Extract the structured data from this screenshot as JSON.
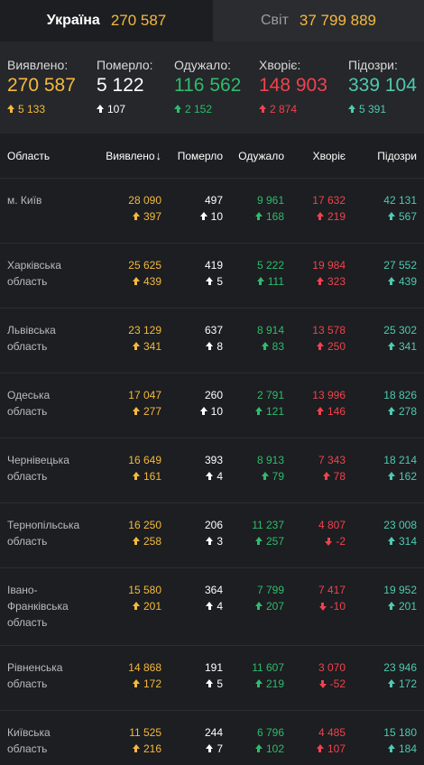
{
  "tabs": {
    "ukraine": {
      "label": "Україна",
      "value": "270 587"
    },
    "world": {
      "label": "Світ",
      "value": "37 799 889"
    }
  },
  "summary": [
    {
      "label": "Виявлено:",
      "value": "270 587",
      "delta": "5 133",
      "dir": "up",
      "color": "c-yellow",
      "dcolor": "c-yellow",
      "width": 99
    },
    {
      "label": "Померло:",
      "value": "5 122",
      "delta": "107",
      "dir": "up",
      "color": "c-white",
      "dcolor": "c-white",
      "width": 86
    },
    {
      "label": "Одужало:",
      "value": "116 562",
      "delta": "2 152",
      "dir": "up",
      "color": "c-green",
      "dcolor": "c-green",
      "width": 94
    },
    {
      "label": "Хворіє:",
      "value": "148 903",
      "delta": "2 874",
      "dir": "up",
      "color": "c-red",
      "dcolor": "c-red",
      "width": 99
    },
    {
      "label": "Підозри:",
      "value": "339 104",
      "delta": "5 391",
      "dir": "up",
      "color": "c-teal",
      "dcolor": "c-teal",
      "width": 84
    }
  ],
  "table": {
    "headers": {
      "region": "Область",
      "detected": "Виявлено",
      "sort_icon": "↓",
      "died": "Померло",
      "recovered": "Одужало",
      "sick": "Хворіє",
      "suspected": "Підозри"
    },
    "rows": [
      {
        "name": "м. Київ",
        "h": 72,
        "cells": [
          [
            "28 090",
            "397",
            "up"
          ],
          [
            "497",
            "10",
            "up"
          ],
          [
            "9 961",
            "168",
            "up"
          ],
          [
            "17 632",
            "219",
            "up"
          ],
          [
            "42 131",
            "567",
            "up"
          ]
        ]
      },
      {
        "name": "Харківська область",
        "h": 72,
        "cells": [
          [
            "25 625",
            "439",
            "up"
          ],
          [
            "419",
            "5",
            "up"
          ],
          [
            "5 222",
            "111",
            "up"
          ],
          [
            "19 984",
            "323",
            "up"
          ],
          [
            "27 552",
            "439",
            "up"
          ]
        ]
      },
      {
        "name": "Львівська область",
        "h": 72,
        "cells": [
          [
            "23 129",
            "341",
            "up"
          ],
          [
            "637",
            "8",
            "up"
          ],
          [
            "8 914",
            "83",
            "up"
          ],
          [
            "13 578",
            "250",
            "up"
          ],
          [
            "25 302",
            "341",
            "up"
          ]
        ]
      },
      {
        "name": "Одеська область",
        "h": 72,
        "cells": [
          [
            "17 047",
            "277",
            "up"
          ],
          [
            "260",
            "10",
            "up"
          ],
          [
            "2 791",
            "121",
            "up"
          ],
          [
            "13 996",
            "146",
            "up"
          ],
          [
            "18 826",
            "278",
            "up"
          ]
        ]
      },
      {
        "name": "Чернівецька область",
        "h": 72,
        "cells": [
          [
            "16 649",
            "161",
            "up"
          ],
          [
            "393",
            "4",
            "up"
          ],
          [
            "8 913",
            "79",
            "up"
          ],
          [
            "7 343",
            "78",
            "up"
          ],
          [
            "18 214",
            "162",
            "up"
          ]
        ]
      },
      {
        "name": "Тернопільська область",
        "h": 72,
        "cells": [
          [
            "16 250",
            "258",
            "up"
          ],
          [
            "206",
            "3",
            "up"
          ],
          [
            "11 237",
            "257",
            "up"
          ],
          [
            "4 807",
            "-2",
            "down"
          ],
          [
            "23 008",
            "314",
            "up"
          ]
        ]
      },
      {
        "name": "Івано-Франківська область",
        "h": 86,
        "cells": [
          [
            "15 580",
            "201",
            "up"
          ],
          [
            "364",
            "4",
            "up"
          ],
          [
            "7 799",
            "207",
            "up"
          ],
          [
            "7 417",
            "-10",
            "down"
          ],
          [
            "19 952",
            "201",
            "up"
          ]
        ]
      },
      {
        "name": "Рівненська область",
        "h": 72,
        "cells": [
          [
            "14 868",
            "172",
            "up"
          ],
          [
            "191",
            "5",
            "up"
          ],
          [
            "11 607",
            "219",
            "up"
          ],
          [
            "3 070",
            "-52",
            "down"
          ],
          [
            "23 946",
            "172",
            "up"
          ]
        ]
      },
      {
        "name": "Київська область",
        "h": 72,
        "cells": [
          [
            "11 525",
            "216",
            "up"
          ],
          [
            "244",
            "7",
            "up"
          ],
          [
            "6 796",
            "102",
            "up"
          ],
          [
            "4 485",
            "107",
            "up"
          ],
          [
            "15 180",
            "184",
            "up"
          ]
        ]
      }
    ]
  },
  "colors": {
    "detected": "#f5b93d",
    "died": "#ffffff",
    "recovered": "#2fbb6d",
    "sick": "#f0424e",
    "suspected": "#4fc9b0"
  }
}
